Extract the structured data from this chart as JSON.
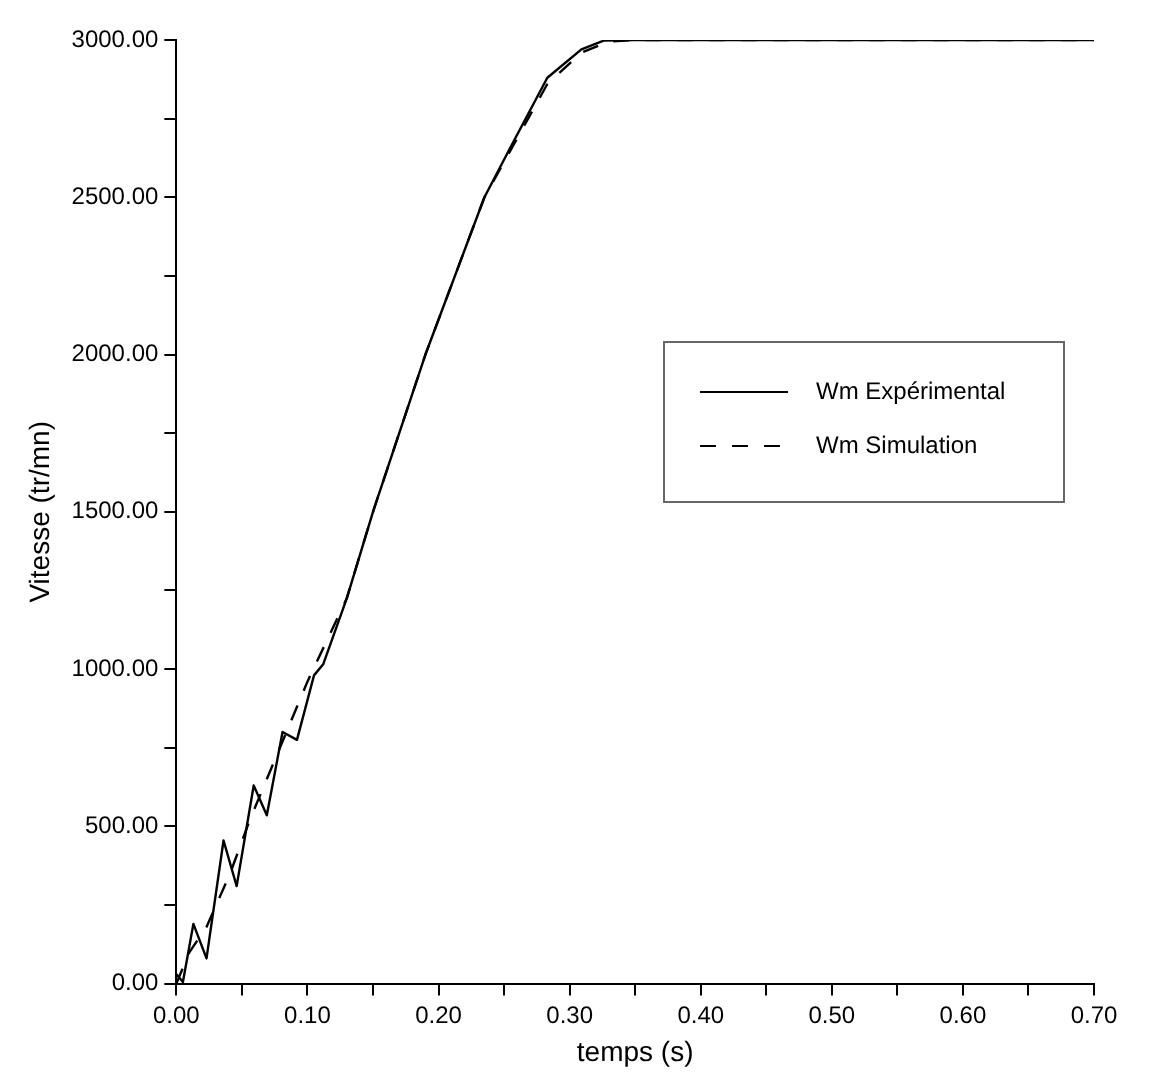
{
  "chart_data": {
    "type": "line",
    "xlabel": "temps (s)",
    "ylabel": "Vitesse (tr/mn)",
    "xlim": [
      0,
      0.7
    ],
    "ylim": [
      0,
      3000
    ],
    "xticks": [
      {
        "value": 0,
        "label": "0.00"
      },
      {
        "value": 0.05,
        "label": null
      },
      {
        "value": 0.1,
        "label": "0.10"
      },
      {
        "value": 0.15,
        "label": null
      },
      {
        "value": 0.2,
        "label": "0.20"
      },
      {
        "value": 0.25,
        "label": null
      },
      {
        "value": 0.3,
        "label": "0.30"
      },
      {
        "value": 0.35,
        "label": null
      },
      {
        "value": 0.4,
        "label": "0.40"
      },
      {
        "value": 0.45,
        "label": null
      },
      {
        "value": 0.5,
        "label": "0.50"
      },
      {
        "value": 0.55,
        "label": null
      },
      {
        "value": 0.6,
        "label": "0.60"
      },
      {
        "value": 0.65,
        "label": null
      },
      {
        "value": 0.7,
        "label": "0.70"
      }
    ],
    "yticks": [
      {
        "value": 0,
        "label": "0.00"
      },
      {
        "value": 250,
        "label": null
      },
      {
        "value": 500,
        "label": "500.00"
      },
      {
        "value": 750,
        "label": null
      },
      {
        "value": 1000,
        "label": "1000.00"
      },
      {
        "value": 1250,
        "label": null
      },
      {
        "value": 1500,
        "label": "1500.00"
      },
      {
        "value": 1750,
        "label": null
      },
      {
        "value": 2000,
        "label": "2000.00"
      },
      {
        "value": 2250,
        "label": null
      },
      {
        "value": 2500,
        "label": "2500.00"
      },
      {
        "value": 2750,
        "label": null
      },
      {
        "value": 3000,
        "label": "3000.00"
      }
    ],
    "grid": false,
    "legend": "right",
    "marker": "none",
    "series": [
      {
        "name": "Wm Expérimental",
        "color": "#000000",
        "line_style": "solid",
        "x": [
          0,
          0.005,
          0.013,
          0.023,
          0.036,
          0.046,
          0.059,
          0.069,
          0.081,
          0.092,
          0.105,
          0.112,
          0.13,
          0.15,
          0.19,
          0.235,
          0.255,
          0.283,
          0.309,
          0.326,
          0.35,
          0.4,
          0.45,
          0.5,
          0.55,
          0.6,
          0.65,
          0.7
        ],
        "values": [
          30,
          5,
          190,
          80,
          455,
          310,
          630,
          535,
          800,
          775,
          980,
          1015,
          1225,
          1500,
          2000,
          2500,
          2660,
          2880,
          2970,
          2998,
          3000,
          3000,
          3000,
          3000,
          3000,
          3000,
          3000,
          3000
        ]
      },
      {
        "name": "Wm Simulation",
        "color": "#000000",
        "line_style": "dashed",
        "x": [
          0,
          0.01,
          0.023,
          0.041,
          0.056,
          0.079,
          0.1,
          0.13,
          0.15,
          0.19,
          0.235,
          0.255,
          0.283,
          0.309,
          0.33,
          0.35,
          0.4,
          0.5,
          0.6,
          0.7
        ],
        "values": [
          0,
          100,
          180,
          350,
          520,
          750,
          960,
          1225,
          1500,
          2000,
          2500,
          2650,
          2860,
          2960,
          2995,
          3000,
          3000,
          3000,
          3000,
          3000
        ]
      }
    ]
  }
}
